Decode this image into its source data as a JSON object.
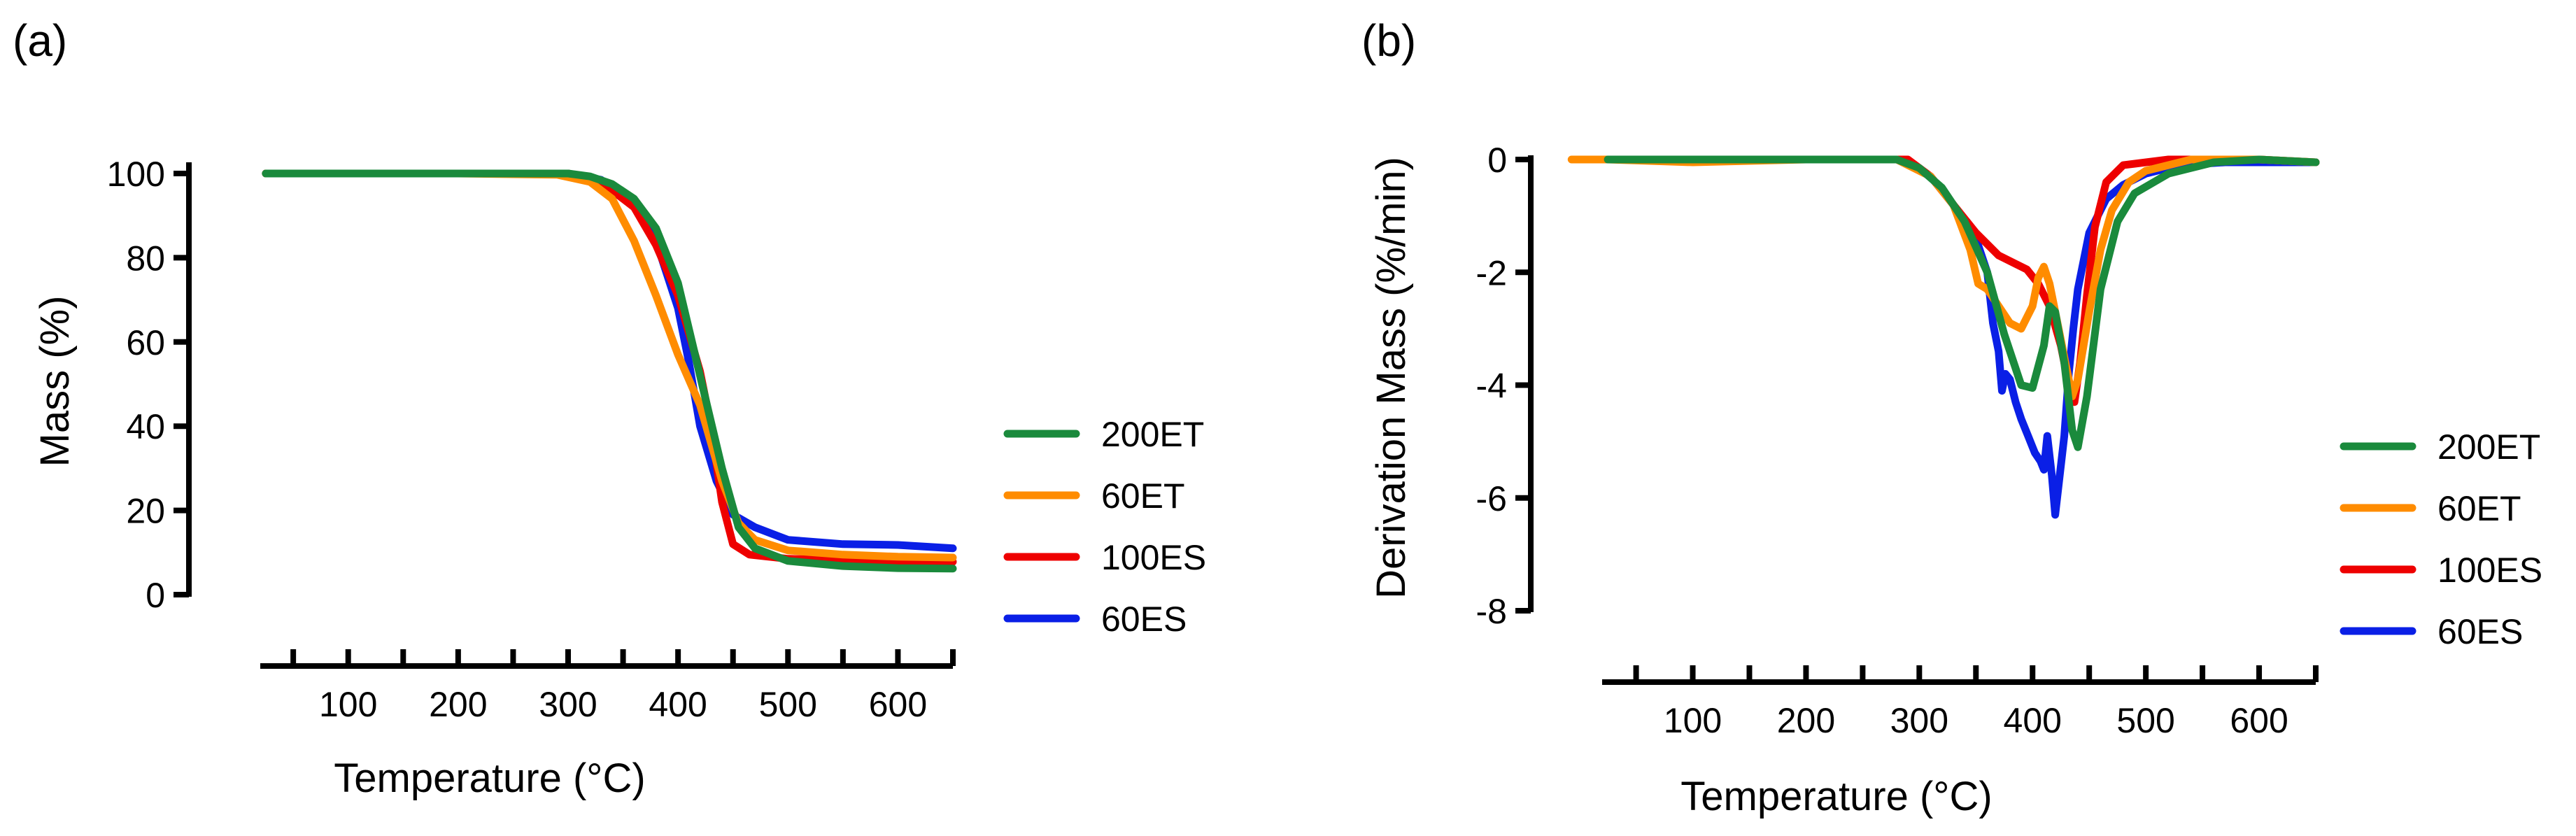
{
  "chart_data": [
    {
      "panel_label": "(a)",
      "type": "line",
      "title": "",
      "xlabel": "Temperature (°C)",
      "ylabel": "Mass (%)",
      "xlim": [
        20,
        650
      ],
      "ylim": [
        0,
        100
      ],
      "x_ticks": [
        100,
        200,
        300,
        400,
        500,
        600
      ],
      "y_ticks": [
        0,
        20,
        40,
        60,
        80,
        100
      ],
      "grid": false,
      "legend_position": "right",
      "series": [
        {
          "name": "200ET",
          "color": "#1a8a3c",
          "points": [
            [
              25,
              100
            ],
            [
              100,
              100
            ],
            [
              200,
              100
            ],
            [
              300,
              100
            ],
            [
              320,
              99.3
            ],
            [
              340,
              97.5
            ],
            [
              360,
              94
            ],
            [
              380,
              87
            ],
            [
              400,
              74
            ],
            [
              420,
              52
            ],
            [
              440,
              30
            ],
            [
              455,
              16
            ],
            [
              470,
              11
            ],
            [
              500,
              8
            ],
            [
              550,
              6.8
            ],
            [
              600,
              6.3
            ],
            [
              650,
              6.2
            ]
          ]
        },
        {
          "name": "60ET",
          "color": "#ff8c00",
          "points": [
            [
              25,
              100
            ],
            [
              100,
              100
            ],
            [
              200,
              100
            ],
            [
              290,
              99.7
            ],
            [
              320,
              98
            ],
            [
              340,
              94
            ],
            [
              360,
              84
            ],
            [
              380,
              71
            ],
            [
              400,
              57
            ],
            [
              420,
              45
            ],
            [
              440,
              27
            ],
            [
              455,
              17
            ],
            [
              470,
              13
            ],
            [
              500,
              10.5
            ],
            [
              550,
              9.5
            ],
            [
              600,
              9
            ],
            [
              650,
              8.8
            ]
          ]
        },
        {
          "name": "100ES",
          "color": "#ee0000",
          "points": [
            [
              25,
              100
            ],
            [
              100,
              100
            ],
            [
              200,
              100
            ],
            [
              300,
              100
            ],
            [
              330,
              98
            ],
            [
              360,
              92
            ],
            [
              380,
              83
            ],
            [
              400,
              71
            ],
            [
              420,
              53
            ],
            [
              430,
              40
            ],
            [
              440,
              22
            ],
            [
              450,
              12
            ],
            [
              465,
              9.5
            ],
            [
              500,
              8.5
            ],
            [
              550,
              8.2
            ],
            [
              600,
              8
            ],
            [
              650,
              7.8
            ]
          ]
        },
        {
          "name": "60ES",
          "color": "#0a1fe6",
          "points": [
            [
              25,
              100
            ],
            [
              100,
              100
            ],
            [
              200,
              100
            ],
            [
              300,
              100
            ],
            [
              330,
              98.5
            ],
            [
              360,
              93
            ],
            [
              380,
              84
            ],
            [
              400,
              68
            ],
            [
              410,
              55
            ],
            [
              420,
              40
            ],
            [
              435,
              27
            ],
            [
              450,
              19
            ],
            [
              470,
              16
            ],
            [
              500,
              13
            ],
            [
              550,
              12
            ],
            [
              600,
              11.8
            ],
            [
              650,
              11
            ]
          ]
        }
      ]
    },
    {
      "panel_label": "(b)",
      "type": "line",
      "title": "",
      "xlabel": "Temperature (°C)",
      "ylabel": "Derivation Mass (%/min)",
      "xlim": [
        20,
        650
      ],
      "ylim": [
        -8,
        0
      ],
      "x_ticks": [
        100,
        200,
        300,
        400,
        500,
        600
      ],
      "y_ticks": [
        0,
        -2,
        -4,
        -6,
        -8
      ],
      "grid": false,
      "legend_position": "right",
      "series": [
        {
          "name": "200ET",
          "color": "#1a8a3c",
          "points": [
            [
              25,
              0
            ],
            [
              100,
              0
            ],
            [
              200,
              0
            ],
            [
              280,
              0
            ],
            [
              300,
              -0.15
            ],
            [
              320,
              -0.5
            ],
            [
              340,
              -1.1
            ],
            [
              360,
              -2
            ],
            [
              375,
              -3.1
            ],
            [
              390,
              -4
            ],
            [
              400,
              -4.05
            ],
            [
              410,
              -3.3
            ],
            [
              415,
              -2.6
            ],
            [
              420,
              -2.7
            ],
            [
              428,
              -3.6
            ],
            [
              435,
              -4.8
            ],
            [
              440,
              -5.1
            ],
            [
              448,
              -4.2
            ],
            [
              460,
              -2.3
            ],
            [
              475,
              -1.1
            ],
            [
              490,
              -0.6
            ],
            [
              520,
              -0.25
            ],
            [
              560,
              -0.05
            ],
            [
              600,
              0
            ],
            [
              650,
              -0.05
            ]
          ]
        },
        {
          "name": "60ET",
          "color": "#ff8c00",
          "points": [
            [
              -7,
              0
            ],
            [
              25,
              0
            ],
            [
              100,
              -0.05
            ],
            [
              200,
              0
            ],
            [
              280,
              0
            ],
            [
              310,
              -0.3
            ],
            [
              330,
              -0.8
            ],
            [
              345,
              -1.6
            ],
            [
              352,
              -2.2
            ],
            [
              360,
              -2.3
            ],
            [
              370,
              -2.6
            ],
            [
              380,
              -2.9
            ],
            [
              390,
              -3
            ],
            [
              400,
              -2.6
            ],
            [
              405,
              -2.1
            ],
            [
              410,
              -1.9
            ],
            [
              415,
              -2.2
            ],
            [
              422,
              -2.9
            ],
            [
              430,
              -3.7
            ],
            [
              435,
              -4.2
            ],
            [
              440,
              -3.9
            ],
            [
              450,
              -2.7
            ],
            [
              460,
              -1.6
            ],
            [
              470,
              -0.9
            ],
            [
              485,
              -0.4
            ],
            [
              500,
              -0.2
            ],
            [
              540,
              0
            ],
            [
              600,
              0
            ],
            [
              650,
              -0.05
            ]
          ]
        },
        {
          "name": "100ES",
          "color": "#ee0000",
          "points": [
            [
              25,
              0
            ],
            [
              100,
              0
            ],
            [
              200,
              0
            ],
            [
              290,
              0
            ],
            [
              310,
              -0.3
            ],
            [
              330,
              -0.8
            ],
            [
              350,
              -1.3
            ],
            [
              370,
              -1.7
            ],
            [
              385,
              -1.85
            ],
            [
              395,
              -1.95
            ],
            [
              405,
              -2.2
            ],
            [
              415,
              -2.6
            ],
            [
              425,
              -3.3
            ],
            [
              432,
              -4
            ],
            [
              437,
              -4.3
            ],
            [
              442,
              -3.6
            ],
            [
              448,
              -2.4
            ],
            [
              455,
              -1.2
            ],
            [
              465,
              -0.4
            ],
            [
              480,
              -0.1
            ],
            [
              520,
              0
            ],
            [
              600,
              0
            ],
            [
              650,
              -0.05
            ]
          ]
        },
        {
          "name": "60ES",
          "color": "#0a1fe6",
          "points": [
            [
              25,
              0
            ],
            [
              100,
              0
            ],
            [
              200,
              0
            ],
            [
              285,
              0
            ],
            [
              310,
              -0.3
            ],
            [
              330,
              -0.8
            ],
            [
              350,
              -1.4
            ],
            [
              360,
              -2
            ],
            [
              365,
              -2.9
            ],
            [
              370,
              -3.4
            ],
            [
              373,
              -4.1
            ],
            [
              376,
              -3.8
            ],
            [
              380,
              -3.9
            ],
            [
              385,
              -4.3
            ],
            [
              390,
              -4.6
            ],
            [
              396,
              -4.9
            ],
            [
              402,
              -5.2
            ],
            [
              407,
              -5.35
            ],
            [
              410,
              -5.5
            ],
            [
              413,
              -4.9
            ],
            [
              417,
              -5.6
            ],
            [
              420,
              -6.3
            ],
            [
              424,
              -5.6
            ],
            [
              428,
              -4.9
            ],
            [
              432,
              -3.8
            ],
            [
              436,
              -3
            ],
            [
              440,
              -2.3
            ],
            [
              450,
              -1.3
            ],
            [
              465,
              -0.7
            ],
            [
              480,
              -0.45
            ],
            [
              500,
              -0.25
            ],
            [
              530,
              -0.1
            ],
            [
              570,
              -0.05
            ],
            [
              650,
              -0.05
            ]
          ]
        }
      ]
    }
  ]
}
